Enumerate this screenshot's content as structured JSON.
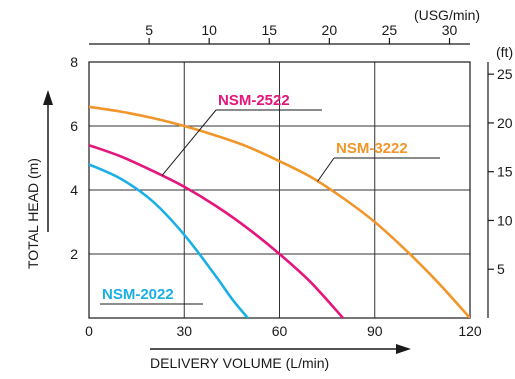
{
  "chart_data": {
    "type": "line",
    "xlabel": "DELIVERY VOLUME (L/min)",
    "ylabel": "TOTAL HEAD (m)",
    "xlim": [
      0,
      120
    ],
    "ylim": [
      0,
      8
    ],
    "x_ticks": [
      "0",
      "30",
      "60",
      "90",
      "120"
    ],
    "y_ticks": [
      "2",
      "4",
      "6",
      "8"
    ],
    "x2_unit": "(USG/min)",
    "x2_ticks": [
      "5",
      "10",
      "15",
      "20",
      "25",
      "30"
    ],
    "x2_values": [
      5,
      10,
      15,
      20,
      25,
      30
    ],
    "y2_unit": "(ft)",
    "y2_ticks": [
      "5",
      "10",
      "15",
      "20",
      "25"
    ],
    "y2_values": [
      5,
      10,
      15,
      20,
      25
    ],
    "grid": true,
    "series": [
      {
        "name": "NSM-2022",
        "color": "#1ab0e6",
        "x": [
          0,
          10,
          20,
          30,
          40,
          45,
          50
        ],
        "y": [
          4.8,
          4.35,
          3.65,
          2.6,
          1.3,
          0.6,
          0
        ]
      },
      {
        "name": "NSM-2522",
        "color": "#e4157c",
        "x": [
          0,
          10,
          20,
          30,
          40,
          50,
          60,
          70,
          80
        ],
        "y": [
          5.4,
          5.05,
          4.6,
          4.1,
          3.5,
          2.8,
          2.0,
          1.1,
          0
        ]
      },
      {
        "name": "NSM-3222",
        "color": "#f0962a",
        "x": [
          0,
          10,
          20,
          30,
          40,
          50,
          60,
          70,
          80,
          90,
          100,
          110,
          120
        ],
        "y": [
          6.6,
          6.45,
          6.25,
          6.0,
          5.7,
          5.35,
          4.9,
          4.4,
          3.75,
          3.0,
          2.1,
          1.1,
          0
        ]
      }
    ]
  }
}
